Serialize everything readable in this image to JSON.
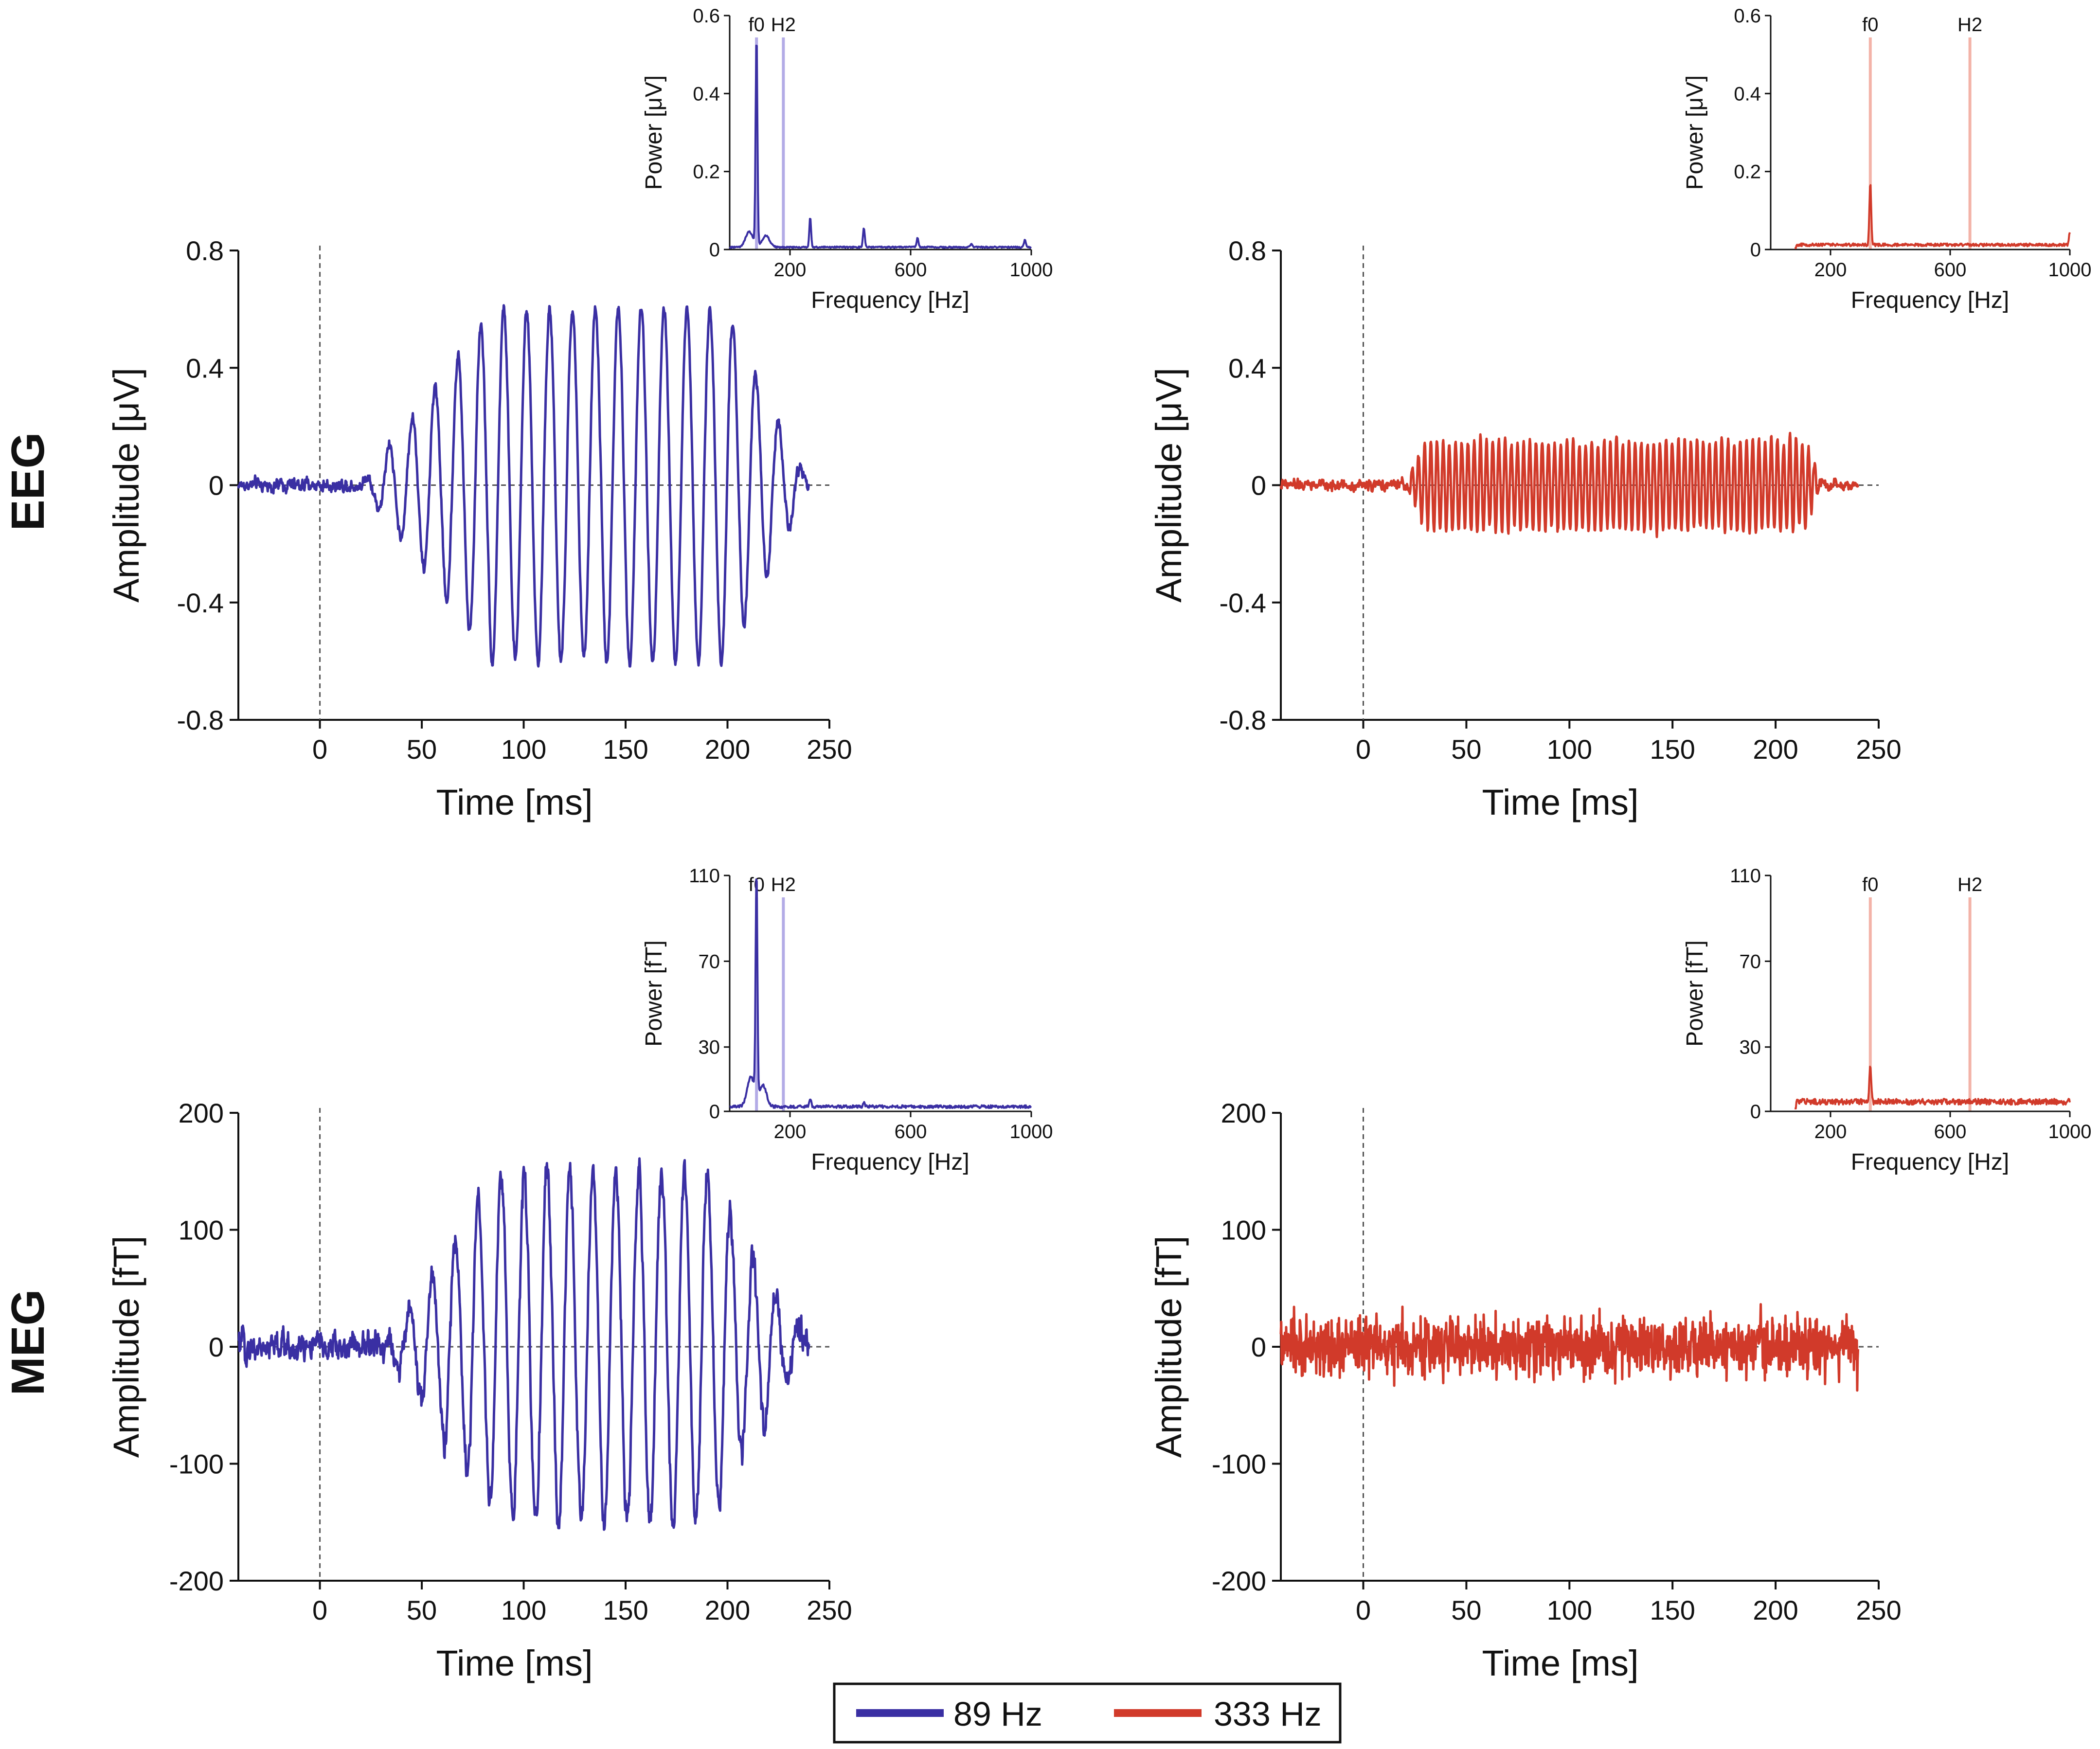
{
  "figure": {
    "row_labels": [
      "EEG",
      "MEG"
    ],
    "legend": [
      {
        "label": "89 Hz",
        "color": "#3a2fa3"
      },
      {
        "label": "333 Hz",
        "color": "#d13a2a"
      }
    ]
  },
  "colors": {
    "blue": "#3a2fa3",
    "red": "#d13a2a",
    "blue_marker": "#b3abe6",
    "red_marker": "#f3b3a8",
    "axis": "#111111"
  },
  "chart_data": [
    {
      "id": "eeg-89hz-time",
      "type": "line",
      "modality": "EEG",
      "stimulus": "89 Hz",
      "xlabel": "Time [ms]",
      "ylabel": "Amplitude [μV]",
      "xlim": [
        -40,
        250
      ],
      "ylim": [
        -0.8,
        0.8
      ],
      "xticks": [
        "0",
        "50",
        "100",
        "150",
        "200",
        "250"
      ],
      "xtick_values": [
        0,
        50,
        100,
        150,
        200,
        250
      ],
      "yticks": [
        "-0.8",
        "-0.4",
        "0",
        "0.4",
        "0.8"
      ],
      "ytick_values": [
        -0.8,
        -0.4,
        0,
        0.4,
        0.8
      ],
      "baseline_end": 250,
      "onset_marker": 0,
      "series": {
        "name": "89 Hz",
        "frequency_hz": 89,
        "t_start": -40,
        "t_end": 240,
        "onset": 20,
        "rise_end": 85,
        "decay_start": 200,
        "response_end": 240,
        "peak_amplitude": 0.6,
        "noise": 0.025
      }
    },
    {
      "id": "eeg-333hz-time",
      "type": "line",
      "modality": "EEG",
      "stimulus": "333 Hz",
      "xlabel": "Time [ms]",
      "ylabel": "Amplitude [μV]",
      "xlim": [
        -40,
        250
      ],
      "ylim": [
        -0.8,
        0.8
      ],
      "xticks": [
        "0",
        "50",
        "100",
        "150",
        "200",
        "250"
      ],
      "xtick_values": [
        0,
        50,
        100,
        150,
        200,
        250
      ],
      "yticks": [
        "-0.8",
        "-0.4",
        "0",
        "0.4",
        "0.8"
      ],
      "ytick_values": [
        -0.8,
        -0.4,
        0,
        0.4,
        0.8
      ],
      "baseline_end": 250,
      "onset_marker": 0,
      "series": {
        "name": "333 Hz",
        "frequency_hz": 333,
        "t_start": -40,
        "t_end": 240,
        "onset": 20,
        "rise_end": 30,
        "decay_start": 215,
        "response_end": 222,
        "peak_amplitude": 0.15,
        "noise": 0.02
      }
    },
    {
      "id": "meg-89hz-time",
      "type": "line",
      "modality": "MEG",
      "stimulus": "89 Hz",
      "xlabel": "Time [ms]",
      "ylabel": "Amplitude [fT]",
      "xlim": [
        -40,
        250
      ],
      "ylim": [
        -200,
        200
      ],
      "xticks": [
        "0",
        "50",
        "100",
        "150",
        "200",
        "250"
      ],
      "xtick_values": [
        0,
        50,
        100,
        150,
        200,
        250
      ],
      "yticks": [
        "-200",
        "-100",
        "0",
        "100",
        "200"
      ],
      "ytick_values": [
        -200,
        -100,
        0,
        100,
        200
      ],
      "baseline_end": 250,
      "onset_marker": 0,
      "series": {
        "name": "89 Hz",
        "frequency_hz": 89,
        "t_start": -40,
        "t_end": 240,
        "onset": 30,
        "rise_end": 90,
        "decay_start": 190,
        "response_end": 240,
        "peak_amplitude": 150,
        "noise": 14
      }
    },
    {
      "id": "meg-333hz-time",
      "type": "line",
      "modality": "MEG",
      "stimulus": "333 Hz",
      "xlabel": "Time [ms]",
      "ylabel": "Amplitude [fT]",
      "xlim": [
        -40,
        250
      ],
      "ylim": [
        -200,
        200
      ],
      "xticks": [
        "0",
        "50",
        "100",
        "150",
        "200",
        "250"
      ],
      "xtick_values": [
        0,
        50,
        100,
        150,
        200,
        250
      ],
      "yticks": [
        "-200",
        "-100",
        "0",
        "100",
        "200"
      ],
      "ytick_values": [
        -200,
        -100,
        0,
        100,
        200
      ],
      "baseline_end": 250,
      "onset_marker": 0,
      "series": {
        "name": "333 Hz",
        "frequency_hz": 333,
        "t_start": -40,
        "t_end": 240,
        "onset": 0,
        "rise_end": 0,
        "decay_start": 240,
        "response_end": 240,
        "peak_amplitude": 5,
        "noise": 22
      }
    },
    {
      "id": "eeg-89hz-spectrum",
      "type": "line",
      "modality": "EEG",
      "stimulus": "89 Hz",
      "xlabel": "Frequency [Hz]",
      "ylabel": "Power [μV]",
      "xlim": [
        0,
        1000
      ],
      "ylim": [
        0,
        0.6
      ],
      "xticks": [
        "200",
        "600",
        "1000"
      ],
      "xtick_values": [
        200,
        600,
        1000
      ],
      "yticks": [
        "0",
        "0.2",
        "0.4",
        "0.6"
      ],
      "ytick_values": [
        0,
        0.2,
        0.4,
        0.6
      ],
      "markers": [
        {
          "label": "f0",
          "x": 89
        },
        {
          "label": "H2",
          "x": 178
        }
      ],
      "series": {
        "name": "89 Hz",
        "f_start": 0,
        "f_end": 1000,
        "peaks": [
          [
            89,
            0.54
          ],
          [
            267,
            0.075
          ],
          [
            445,
            0.05
          ],
          [
            623,
            0.025
          ],
          [
            801,
            0.01
          ],
          [
            979,
            0.02
          ]
        ],
        "skirt": [
          [
            65,
            0.04
          ],
          [
            120,
            0.03
          ]
        ],
        "floor": 0.006
      }
    },
    {
      "id": "eeg-333hz-spectrum",
      "type": "line",
      "modality": "EEG",
      "stimulus": "333 Hz",
      "xlabel": "Frequency [Hz]",
      "ylabel": "Power [μV]",
      "xlim": [
        0,
        1000
      ],
      "ylim": [
        0,
        0.6
      ],
      "xticks": [
        "200",
        "600",
        "1000"
      ],
      "xtick_values": [
        200,
        600,
        1000
      ],
      "yticks": [
        "0",
        "0.2",
        "0.4",
        "0.6"
      ],
      "ytick_values": [
        0,
        0.2,
        0.4,
        0.6
      ],
      "markers": [
        {
          "label": "f0",
          "x": 333
        },
        {
          "label": "H2",
          "x": 666
        }
      ],
      "series": {
        "name": "333 Hz",
        "f_start": 80,
        "f_end": 1000,
        "peaks": [
          [
            333,
            0.16
          ],
          [
            1000,
            0.035
          ]
        ],
        "skirt": [],
        "floor": 0.012
      }
    },
    {
      "id": "meg-89hz-spectrum",
      "type": "line",
      "modality": "MEG",
      "stimulus": "89 Hz",
      "xlabel": "Frequency [Hz]",
      "ylabel": "Power [fT]",
      "xlim": [
        0,
        1000
      ],
      "ylim": [
        0,
        110
      ],
      "xticks": [
        "200",
        "600",
        "1000"
      ],
      "xtick_values": [
        200,
        600,
        1000
      ],
      "yticks": [
        "0",
        "30",
        "70",
        "110"
      ],
      "ytick_values": [
        0,
        30,
        70,
        110
      ],
      "markers": [
        {
          "label": "f0",
          "x": 89
        },
        {
          "label": "H2",
          "x": 178
        }
      ],
      "series": {
        "name": "89 Hz",
        "f_start": 0,
        "f_end": 1000,
        "peaks": [
          [
            89,
            105
          ],
          [
            267,
            4
          ],
          [
            445,
            2
          ]
        ],
        "skirt": [
          [
            70,
            14
          ],
          [
            110,
            10
          ]
        ],
        "floor": 2.2
      }
    },
    {
      "id": "meg-333hz-spectrum",
      "type": "line",
      "modality": "MEG",
      "stimulus": "333 Hz",
      "xlabel": "Frequency [Hz]",
      "ylabel": "Power [fT]",
      "xlim": [
        0,
        1000
      ],
      "ylim": [
        0,
        110
      ],
      "xticks": [
        "200",
        "600",
        "1000"
      ],
      "xtick_values": [
        200,
        600,
        1000
      ],
      "yticks": [
        "0",
        "30",
        "70",
        "110"
      ],
      "ytick_values": [
        0,
        30,
        70,
        110
      ],
      "markers": [
        {
          "label": "f0",
          "x": 333
        },
        {
          "label": "H2",
          "x": 666
        }
      ],
      "series": {
        "name": "333 Hz",
        "f_start": 80,
        "f_end": 1000,
        "peaks": [
          [
            333,
            18
          ]
        ],
        "skirt": [],
        "floor": 4.5
      }
    }
  ]
}
